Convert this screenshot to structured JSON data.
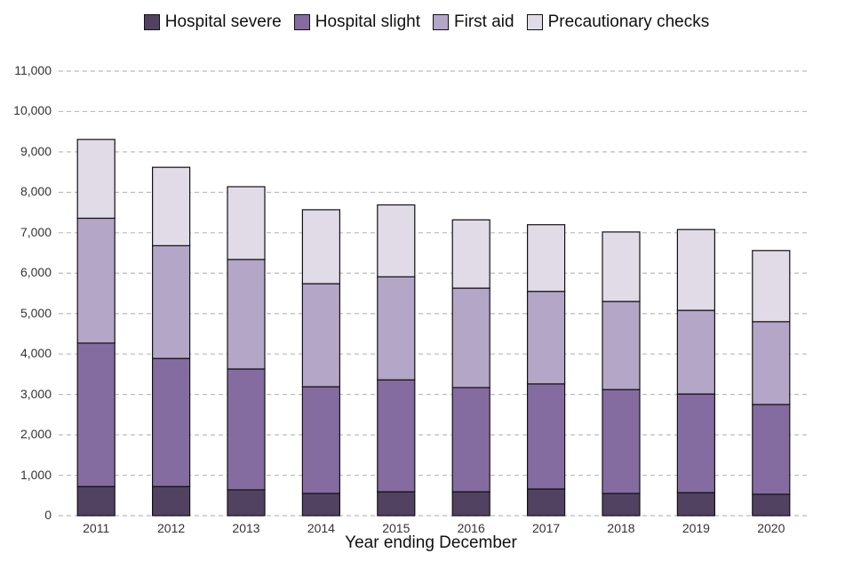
{
  "chart_data": {
    "type": "bar",
    "stacked": true,
    "xlabel": "Year ending December",
    "ylabel": "",
    "ylim": [
      0,
      11000
    ],
    "yticks": [
      0,
      1000,
      2000,
      3000,
      4000,
      5000,
      6000,
      7000,
      8000,
      9000,
      10000,
      11000
    ],
    "ytick_labels": [
      "0",
      "1,000",
      "2,000",
      "3,000",
      "4,000",
      "5,000",
      "6,000",
      "7,000",
      "8,000",
      "9,000",
      "10,000",
      "11,000"
    ],
    "grid": "horizontal dashed",
    "legend": "top",
    "categories": [
      "2011",
      "2012",
      "2013",
      "2014",
      "2015",
      "2016",
      "2017",
      "2018",
      "2019",
      "2020"
    ],
    "series": [
      {
        "name": "Hospital severe",
        "color": "#524262",
        "values": [
          720,
          720,
          640,
          550,
          590,
          590,
          660,
          550,
          570,
          530
        ]
      },
      {
        "name": "Hospital slight",
        "color": "#846ca0",
        "values": [
          3550,
          3170,
          2990,
          2640,
          2770,
          2580,
          2600,
          2570,
          2440,
          2220
        ]
      },
      {
        "name": "First aid",
        "color": "#b4a6c7",
        "values": [
          3090,
          2790,
          2710,
          2550,
          2550,
          2460,
          2290,
          2180,
          2070,
          2050
        ]
      },
      {
        "name": "Precautionary checks",
        "color": "#e0dbe7",
        "values": [
          1950,
          1940,
          1800,
          1830,
          1780,
          1690,
          1650,
          1720,
          2000,
          1760
        ]
      }
    ]
  }
}
